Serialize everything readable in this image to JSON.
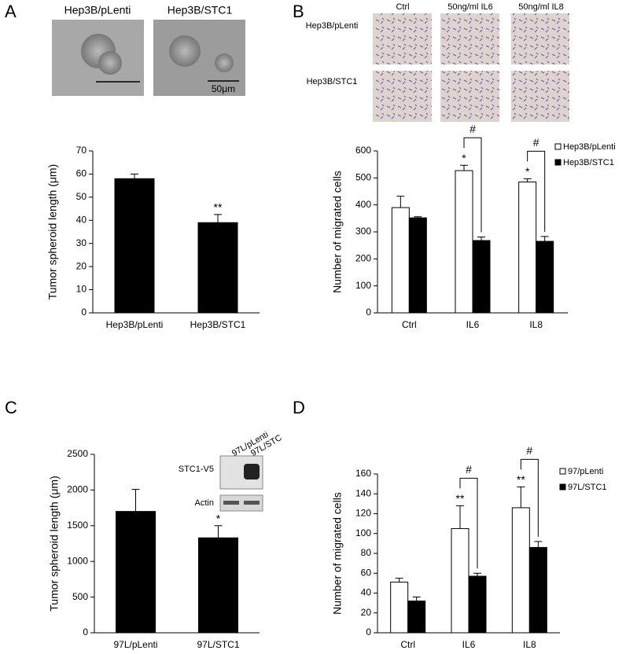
{
  "panel_labels": [
    "A",
    "B",
    "C",
    "D"
  ],
  "images_a": {
    "labels": [
      "Hep3B/pLenti",
      "Hep3B/STC1"
    ],
    "scale_bar": "50μm"
  },
  "images_b": {
    "columns": [
      "Ctrl",
      "50ng/ml IL6",
      "50ng/ml IL8"
    ],
    "rows": [
      "Hep3B/pLenti",
      "Hep3B/STC1"
    ]
  },
  "blot": {
    "lanes": [
      "97L/pLenti",
      "97L/STC"
    ],
    "bands": [
      "STC1-V5",
      "Actin"
    ]
  },
  "chart_data": [
    {
      "type": "bar",
      "ylabel": "Tumor spheroid length (μm)",
      "categories": [
        "Hep3B/pLenti",
        "Hep3B/STC1"
      ],
      "values": [
        58,
        39
      ],
      "errors": [
        2,
        3.5
      ],
      "marks": [
        null,
        "**"
      ],
      "color": "#000000",
      "ylim": [
        0,
        70
      ],
      "yticks": [
        0,
        10,
        20,
        30,
        40,
        50,
        60,
        70
      ]
    },
    {
      "type": "bar",
      "ylabel": "Number of migrated cells",
      "categories": [
        "Ctrl",
        "IL6",
        "IL8"
      ],
      "series": [
        {
          "name": "Hep3B/pLenti",
          "color": "#ffffff",
          "values": [
            390,
            527,
            485
          ],
          "errors": [
            42,
            20,
            12
          ],
          "marks": [
            null,
            "*",
            "*"
          ]
        },
        {
          "name": "Hep3B/STC1",
          "color": "#000000",
          "values": [
            352,
            268,
            265
          ],
          "errors": [
            4,
            13,
            18
          ],
          "marks": [
            null,
            null,
            null
          ]
        }
      ],
      "bracket_labels": [
        null,
        "#",
        "#"
      ],
      "legend": "upper right",
      "ylim": [
        0,
        600
      ],
      "yticks": [
        0,
        100,
        200,
        300,
        400,
        500,
        600
      ]
    },
    {
      "type": "bar",
      "ylabel": "Tumor spheroid length (μm)",
      "categories": [
        "97L/pLenti",
        "97L/STC1"
      ],
      "values": [
        1700,
        1330
      ],
      "errors": [
        310,
        170
      ],
      "marks": [
        null,
        "*"
      ],
      "color": "#000000",
      "ylim": [
        0,
        2500
      ],
      "yticks": [
        0,
        500,
        1000,
        1500,
        2000,
        2500
      ]
    },
    {
      "type": "bar",
      "ylabel": "Number of migrated cells",
      "categories": [
        "Ctrl",
        "IL6",
        "IL8"
      ],
      "series": [
        {
          "name": "97/pLenti",
          "color": "#ffffff",
          "values": [
            51,
            105,
            126
          ],
          "errors": [
            4,
            23,
            21
          ],
          "marks": [
            null,
            "**",
            "**"
          ]
        },
        {
          "name": "97L/STC1",
          "color": "#000000",
          "values": [
            32,
            57,
            86
          ],
          "errors": [
            4,
            3,
            6
          ],
          "marks": [
            null,
            null,
            null
          ]
        }
      ],
      "bracket_labels": [
        null,
        "#",
        "#"
      ],
      "legend": "upper right",
      "ylim": [
        0,
        160
      ],
      "yticks": [
        0,
        20,
        40,
        60,
        80,
        100,
        120,
        140,
        160
      ]
    }
  ]
}
